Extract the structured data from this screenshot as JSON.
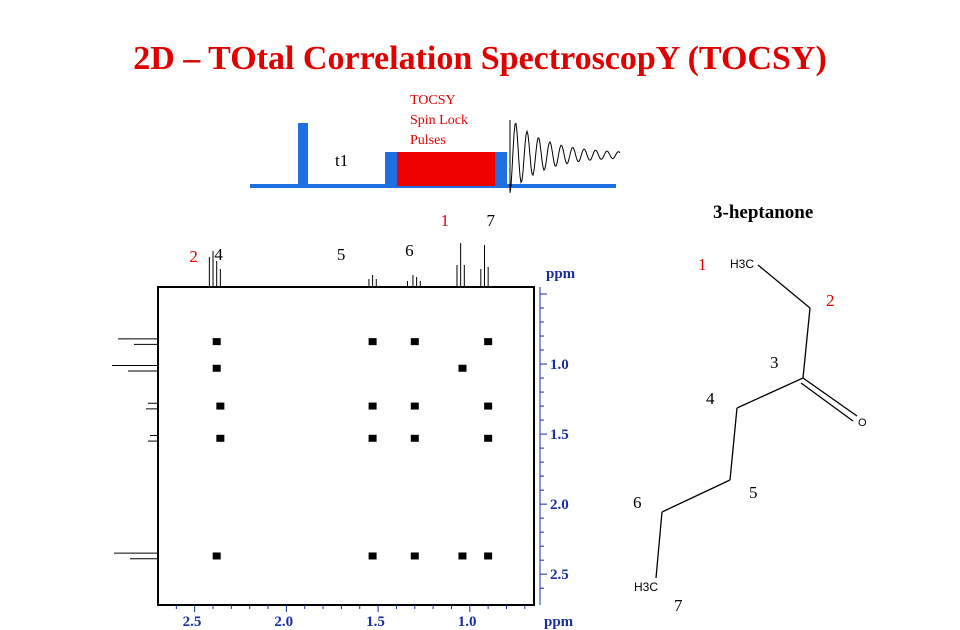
{
  "title": "2D – TOtal Correlation SpectroscopY  (TOCSY)",
  "pulse_sequence": {
    "t1_label": "t1",
    "spin_lock_lines": [
      "TOCSY",
      "Spin Lock",
      "Pulses"
    ]
  },
  "spectrum": {
    "top_peak_labels": [
      {
        "id": "2",
        "text": "2",
        "color": "#e10000",
        "ppm": 2.42
      },
      {
        "id": "4",
        "text": "4",
        "color": "#000000",
        "ppm": 2.36
      },
      {
        "id": "5",
        "text": "5",
        "color": "#000000",
        "ppm": 1.55
      },
      {
        "id": "6",
        "text": "6",
        "color": "#000000",
        "ppm": 1.32
      },
      {
        "id": "1",
        "text": "1",
        "color": "#e10000",
        "ppm": 1.05
      },
      {
        "id": "7",
        "text": "7",
        "color": "#000000",
        "ppm": 0.92
      }
    ],
    "top_ppm_label": "ppm",
    "bottom_ppm_label": "ppm",
    "x_axis": {
      "min": 0.65,
      "max": 2.7,
      "ticks": [
        "2.5",
        "2.0",
        "1.5",
        "1.0"
      ],
      "tick_values": [
        2.5,
        2.0,
        1.5,
        1.0
      ]
    },
    "y_axis": {
      "min": 0.45,
      "max": 2.72,
      "ticks": [
        "1.0",
        "1.5",
        "2.0",
        "2.5"
      ],
      "tick_values": [
        1.0,
        1.5,
        2.0,
        2.5
      ]
    },
    "tick_color": "#1a2fa0",
    "cross_peaks": [
      {
        "x": 2.38,
        "y": 0.84
      },
      {
        "x": 1.53,
        "y": 0.84
      },
      {
        "x": 1.3,
        "y": 0.84
      },
      {
        "x": 0.9,
        "y": 0.84
      },
      {
        "x": 2.38,
        "y": 1.03
      },
      {
        "x": 1.04,
        "y": 1.03
      },
      {
        "x": 2.36,
        "y": 1.3
      },
      {
        "x": 1.53,
        "y": 1.3
      },
      {
        "x": 1.3,
        "y": 1.3
      },
      {
        "x": 0.9,
        "y": 1.3
      },
      {
        "x": 2.36,
        "y": 1.53
      },
      {
        "x": 1.53,
        "y": 1.53
      },
      {
        "x": 1.3,
        "y": 1.53
      },
      {
        "x": 0.9,
        "y": 1.53
      },
      {
        "x": 2.38,
        "y": 2.37
      },
      {
        "x": 1.53,
        "y": 2.37
      },
      {
        "x": 1.3,
        "y": 2.37
      },
      {
        "x": 1.04,
        "y": 2.37
      },
      {
        "x": 0.9,
        "y": 2.37
      }
    ]
  },
  "molecule": {
    "name": "3-heptanone",
    "number_labels": [
      {
        "text": "1",
        "color": "#e10000"
      },
      {
        "text": "2",
        "color": "#e10000"
      },
      {
        "text": "3",
        "color": "#000000"
      },
      {
        "text": "4",
        "color": "#000000"
      },
      {
        "text": "5",
        "color": "#000000"
      },
      {
        "text": "6",
        "color": "#000000"
      },
      {
        "text": "7",
        "color": "#000000"
      }
    ],
    "h3c_top": "H3C",
    "h3c_bottom": "H3C",
    "oxygen": "O"
  }
}
